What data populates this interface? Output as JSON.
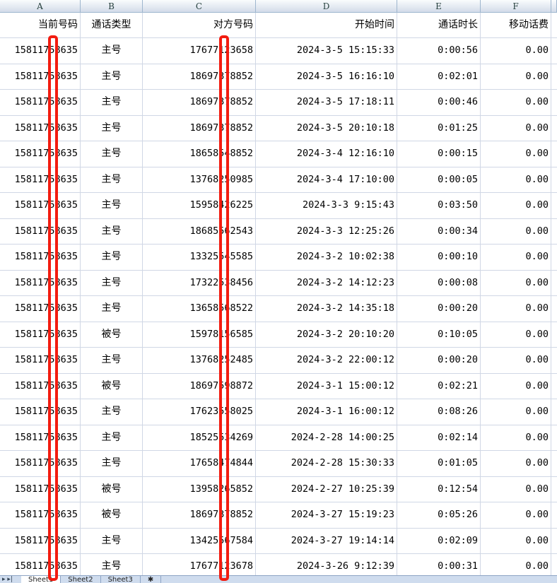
{
  "columns": [
    "A",
    "B",
    "C",
    "D",
    "E",
    "F"
  ],
  "headers": [
    "当前号码",
    "通话类型",
    "对方号码",
    "开始时间",
    "通话时长",
    "移动话费"
  ],
  "rows": [
    [
      "15811758635",
      "主号",
      "17677123658",
      "2024-3-5 15:15:33",
      "0:00:56",
      "0.00"
    ],
    [
      "15811758635",
      "主号",
      "18697378852",
      "2024-3-5 16:16:10",
      "0:02:01",
      "0.00"
    ],
    [
      "15811758635",
      "主号",
      "18697378852",
      "2024-3-5 17:18:11",
      "0:00:46",
      "0.00"
    ],
    [
      "15811758635",
      "主号",
      "18697378852",
      "2024-3-5 20:10:18",
      "0:01:25",
      "0.00"
    ],
    [
      "15811758635",
      "主号",
      "18658548852",
      "2024-3-4 12:16:10",
      "0:00:15",
      "0.00"
    ],
    [
      "15811758635",
      "主号",
      "13768250985",
      "2024-3-4 17:10:00",
      "0:00:05",
      "0.00"
    ],
    [
      "15811758635",
      "主号",
      "15958426225",
      "2024-3-3 9:15:43",
      "0:03:50",
      "0.00"
    ],
    [
      "15811758635",
      "主号",
      "18685562543",
      "2024-3-3 12:25:26",
      "0:00:34",
      "0.00"
    ],
    [
      "15811758635",
      "主号",
      "13325545585",
      "2024-3-2 10:02:38",
      "0:00:10",
      "0.00"
    ],
    [
      "15811758635",
      "主号",
      "17322538456",
      "2024-3-2 14:12:23",
      "0:00:08",
      "0.00"
    ],
    [
      "15811758635",
      "主号",
      "13658568522",
      "2024-3-2 14:35:18",
      "0:00:20",
      "0.00"
    ],
    [
      "15811758635",
      "被号",
      "15978156585",
      "2024-3-2 20:10:20",
      "0:10:05",
      "0.00"
    ],
    [
      "15811758635",
      "主号",
      "13768252485",
      "2024-3-2 22:00:12",
      "0:00:20",
      "0.00"
    ],
    [
      "15811758635",
      "被号",
      "18697598872",
      "2024-3-1 15:00:12",
      "0:02:21",
      "0.00"
    ],
    [
      "15811758635",
      "主号",
      "17623558025",
      "2024-3-1 16:00:12",
      "0:08:26",
      "0.00"
    ],
    [
      "15811758635",
      "主号",
      "18525534269",
      "2024-2-28 14:00:25",
      "0:02:14",
      "0.00"
    ],
    [
      "15811758635",
      "主号",
      "17658474844",
      "2024-2-28 15:30:33",
      "0:01:05",
      "0.00"
    ],
    [
      "15811758635",
      "被号",
      "13958265852",
      "2024-2-27 10:25:39",
      "0:12:54",
      "0.00"
    ],
    [
      "15811758635",
      "被号",
      "18697378852",
      "2024-3-27 15:19:23",
      "0:05:26",
      "0.00"
    ],
    [
      "15811758635",
      "主号",
      "13425567584",
      "2024-3-27 19:14:14",
      "0:02:09",
      "0.00"
    ],
    [
      "15811758635",
      "主号",
      "17677123678",
      "2024-3-26 9:12:39",
      "0:00:31",
      "0.00"
    ]
  ],
  "sheet_tabs": [
    "Sheet1",
    "Sheet2",
    "Sheet3"
  ],
  "colors": {
    "redact": "#f21c10",
    "grid": "#d0d7e5"
  }
}
